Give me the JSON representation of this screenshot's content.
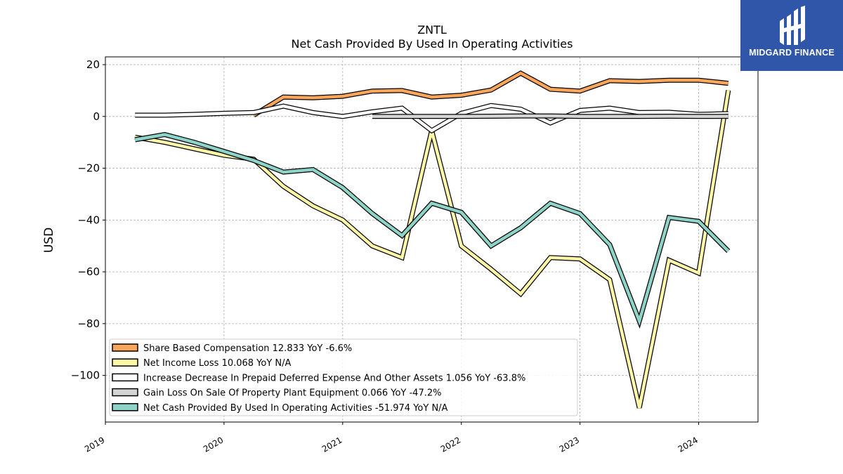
{
  "logo": {
    "text": "MIDGARD FINANCE"
  },
  "chart_data": {
    "type": "line",
    "title": "ZNTL",
    "subtitle": "Net Cash Provided By Used In Operating Activities",
    "ylabel": "USD",
    "xlabel": "",
    "ylim": [
      -118,
      23
    ],
    "xlim": [
      2019.0,
      2024.5
    ],
    "yticks": [
      20,
      0,
      -20,
      -40,
      -60,
      -80,
      -100
    ],
    "ytick_labels": [
      "20",
      "0",
      "−20",
      "−40",
      "−60",
      "−80",
      "−100"
    ],
    "xticks": [
      2019,
      2020,
      2021,
      2022,
      2023,
      2024
    ],
    "xtick_labels": [
      "2019",
      "2020",
      "2021",
      "2022",
      "2023",
      "2024"
    ],
    "grid": true,
    "legend_position": "lower-left",
    "series": [
      {
        "name": "Share Based Compensation",
        "legend": "Share Based Compensation  12.833 YoY -6.6%",
        "color": "#f9a65a",
        "x": [
          2020.25,
          2020.5,
          2020.75,
          2021.0,
          2021.25,
          2021.5,
          2021.75,
          2022.0,
          2022.25,
          2022.5,
          2022.75,
          2023.0,
          2023.25,
          2023.5,
          2023.75,
          2024.0,
          2024.25
        ],
        "values": [
          0.5,
          7.5,
          7.2,
          7.8,
          9.8,
          10.0,
          7.5,
          8.2,
          10.2,
          16.7,
          10.5,
          9.8,
          13.8,
          13.5,
          14.0,
          14.0,
          12.8
        ]
      },
      {
        "name": "Net Income Loss",
        "legend": "Net Income Loss  10.068 YoY N/A",
        "color": "#fff7a8",
        "x": [
          2019.25,
          2019.5,
          2019.75,
          2020.0,
          2020.25,
          2020.5,
          2020.75,
          2021.0,
          2021.25,
          2021.5,
          2021.75,
          2022.0,
          2022.25,
          2022.5,
          2022.75,
          2023.0,
          2023.25,
          2023.5,
          2023.75,
          2024.0,
          2024.25
        ],
        "values": [
          -8,
          -10,
          -12.5,
          -15,
          -16.5,
          -27,
          -34.5,
          -40,
          -50,
          -54.5,
          -5.5,
          -50,
          -59,
          -68.5,
          -54.5,
          -55,
          -63,
          -112.5,
          -55.5,
          -60.5,
          10.1
        ]
      },
      {
        "name": "Increase Decrease In Prepaid Deferred Expense And Other Assets",
        "legend": "Increase Decrease In Prepaid Deferred Expense And Other Assets  1.056 YoY -63.8%",
        "color": "#ffffff",
        "x": [
          2019.25,
          2019.5,
          2019.75,
          2020.0,
          2020.25,
          2020.5,
          2020.75,
          2021.0,
          2021.25,
          2021.5,
          2021.75,
          2022.0,
          2022.25,
          2022.5,
          2022.75,
          2023.0,
          2023.25,
          2023.5,
          2023.75,
          2024.0,
          2024.25
        ],
        "values": [
          0.5,
          0.5,
          0.8,
          1.2,
          1.5,
          4.0,
          1.5,
          0.0,
          1.8,
          3.2,
          -5.5,
          1.2,
          4.2,
          2.8,
          -2.5,
          2.3,
          3.2,
          1.5,
          1.6,
          0.8,
          1.1
        ]
      },
      {
        "name": "Gain Loss On Sale Of Property Plant Equipment",
        "legend": "Gain Loss On Sale Of Property Plant Equipment  0.066 YoY -47.2%",
        "color": "#d4d4d4",
        "x": [
          2021.25,
          2021.5,
          2021.75,
          2022.0,
          2022.25,
          2022.5,
          2022.75,
          2023.0,
          2023.25,
          2023.5,
          2023.75,
          2024.0,
          2024.25
        ],
        "values": [
          0.0,
          0.0,
          0.0,
          0.0,
          0.1,
          0.2,
          0.2,
          0.0,
          0.0,
          0.0,
          0.1,
          0.0,
          0.07
        ]
      },
      {
        "name": "Net Cash Provided By Used In Operating Activities",
        "legend": "Net Cash Provided By Used In Operating Activities  -51.974 YoY N/A",
        "color": "#8dd3c7",
        "x": [
          2019.25,
          2019.5,
          2019.75,
          2020.0,
          2020.25,
          2020.5,
          2020.75,
          2021.0,
          2021.25,
          2021.5,
          2021.75,
          2022.0,
          2022.25,
          2022.5,
          2022.75,
          2023.0,
          2023.25,
          2023.5,
          2023.75,
          2024.0,
          2024.25
        ],
        "values": [
          -9,
          -7,
          -10,
          -13.5,
          -17,
          -21.5,
          -20.5,
          -27.5,
          -37.5,
          -46,
          -33.5,
          -37,
          -50,
          -43,
          -33.5,
          -37.5,
          -49.5,
          -79,
          -39,
          -40.5,
          -52
        ]
      }
    ]
  }
}
